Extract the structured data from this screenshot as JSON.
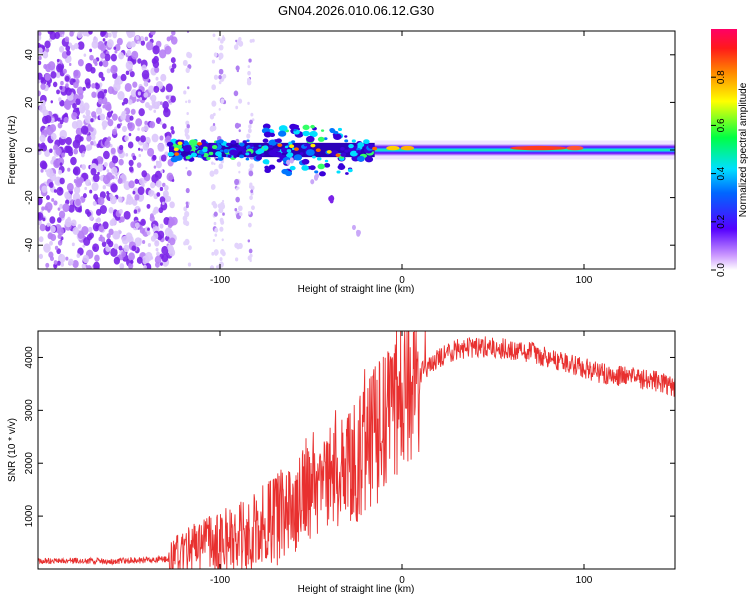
{
  "chart_data": [
    {
      "type": "heatmap",
      "title": "GN04.2026.010.06.12.G30",
      "xlabel": "Height of straight line (km)",
      "ylabel": "Frequency (Hz)",
      "xlim": [
        -200,
        150
      ],
      "ylim": [
        -50,
        50
      ],
      "xticks": [
        -100,
        0,
        100
      ],
      "yticks": [
        -40,
        -20,
        0,
        20,
        40
      ],
      "colorbar": {
        "label": "Normalized spectral amplitude",
        "range": [
          0,
          1
        ],
        "ticks": [
          "0.0",
          "0.2",
          "0.4",
          "0.6",
          "0.8"
        ],
        "tick_values": [
          0.0,
          0.2,
          0.4,
          0.6,
          0.8
        ]
      },
      "features": {
        "noise_region_x": [
          -200,
          -125
        ],
        "sparse_noise_x": [
          -120,
          -82
        ],
        "narrowband_start_x": -128,
        "strong_scatter_x": [
          -128,
          -15
        ],
        "stable_line_x": [
          -15,
          150
        ],
        "peak_amplitude_x": 75,
        "echo_track": [
          [
            -62,
            -5
          ],
          [
            -48,
            -12
          ],
          [
            -38,
            -20
          ],
          [
            -25,
            -34
          ]
        ]
      }
    },
    {
      "type": "line",
      "title": "",
      "xlabel": "Height of straight line (km)",
      "ylabel": "SNR (10 * v/v)",
      "xlim": [
        -200,
        150
      ],
      "ylim": [
        0,
        4500
      ],
      "xticks": [
        -100,
        0,
        100
      ],
      "yticks": [
        1000,
        2000,
        3000,
        4000
      ],
      "color": "#e8302f",
      "series": [
        {
          "name": "SNR",
          "x": [
            -200,
            -180,
            -160,
            -140,
            -128,
            -120,
            -110,
            -100,
            -90,
            -80,
            -70,
            -60,
            -50,
            -40,
            -30,
            -20,
            -10,
            0,
            10,
            20,
            30,
            40,
            50,
            60,
            70,
            80,
            90,
            100,
            110,
            120,
            130,
            140,
            150
          ],
          "values": [
            150,
            160,
            150,
            170,
            190,
            350,
            420,
            500,
            600,
            700,
            900,
            1250,
            1550,
            1800,
            2000,
            2300,
            2700,
            3200,
            3700,
            4000,
            4150,
            4200,
            4200,
            4150,
            4100,
            4000,
            3900,
            3800,
            3700,
            3650,
            3600,
            3550,
            3450
          ]
        }
      ]
    }
  ]
}
